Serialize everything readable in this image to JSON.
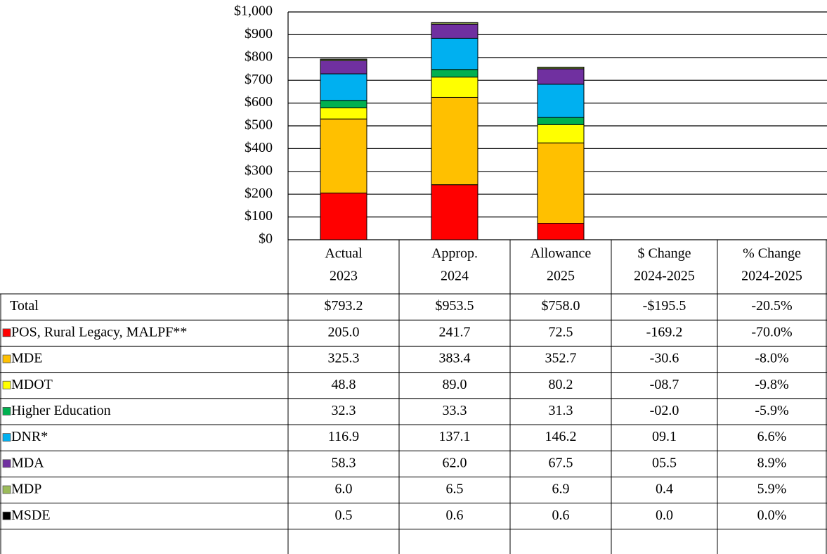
{
  "chart_data": {
    "type": "bar",
    "stacked": true,
    "categories": [
      [
        "Actual",
        "2023"
      ],
      [
        "Approp.",
        "2024"
      ],
      [
        "Allowance",
        "2025"
      ]
    ],
    "extra_columns": [
      [
        "$ Change",
        "2024-2025"
      ],
      [
        "% Change",
        "2024-2025"
      ]
    ],
    "ylim": [
      0,
      1000
    ],
    "yticks": [
      {
        "value": 0,
        "label": "$0"
      },
      {
        "value": 100,
        "label": "$100"
      },
      {
        "value": 200,
        "label": "$200"
      },
      {
        "value": 300,
        "label": "$300"
      },
      {
        "value": 400,
        "label": "$400"
      },
      {
        "value": 500,
        "label": "$500"
      },
      {
        "value": 600,
        "label": "$600"
      },
      {
        "value": 700,
        "label": "$700"
      },
      {
        "value": 800,
        "label": "$800"
      },
      {
        "value": 900,
        "label": "$900"
      },
      {
        "value": 1000,
        "label": "$1,000"
      }
    ],
    "grid": true,
    "total_row": {
      "label": "Total",
      "cells": [
        "$793.2",
        "$953.5",
        "$758.0",
        "-$195.5",
        "-20.5%"
      ]
    },
    "series": [
      {
        "name": "POS, Rural Legacy, MALPF**",
        "color": "#ff0000",
        "values": [
          205.0,
          241.7,
          72.5
        ],
        "value_labels": [
          "205.0",
          "241.7",
          "72.5"
        ],
        "change_labels": [
          "-169.2",
          "-70.0%"
        ]
      },
      {
        "name": "MDE",
        "color": "#ffc000",
        "values": [
          325.3,
          383.4,
          352.7
        ],
        "value_labels": [
          "325.3",
          "383.4",
          "352.7"
        ],
        "change_labels": [
          "-30.6",
          "-8.0%"
        ]
      },
      {
        "name": "MDOT",
        "color": "#ffff00",
        "values": [
          48.8,
          89.0,
          80.2
        ],
        "value_labels": [
          "48.8",
          "89.0",
          "80.2"
        ],
        "change_labels": [
          "-08.7",
          "-9.8%"
        ]
      },
      {
        "name": "Higher Education",
        "color": "#00b050",
        "values": [
          32.3,
          33.3,
          31.3
        ],
        "value_labels": [
          "32.3",
          "33.3",
          "31.3"
        ],
        "change_labels": [
          "-02.0",
          "-5.9%"
        ]
      },
      {
        "name": "DNR*",
        "color": "#00b0f0",
        "values": [
          116.9,
          137.1,
          146.2
        ],
        "value_labels": [
          "116.9",
          "137.1",
          "146.2"
        ],
        "change_labels": [
          "09.1",
          "6.6%"
        ]
      },
      {
        "name": "MDA",
        "color": "#7030a0",
        "values": [
          58.3,
          62.0,
          67.5
        ],
        "value_labels": [
          "58.3",
          "62.0",
          "67.5"
        ],
        "change_labels": [
          "05.5",
          "8.9%"
        ]
      },
      {
        "name": "MDP",
        "color": "#9bbb59",
        "values": [
          6.0,
          6.5,
          6.9
        ],
        "value_labels": [
          "6.0",
          "6.5",
          "6.9"
        ],
        "change_labels": [
          "0.4",
          "5.9%"
        ]
      },
      {
        "name": "MSDE",
        "color": "#000000",
        "values": [
          0.5,
          0.6,
          0.6
        ],
        "value_labels": [
          "0.5",
          "0.6",
          "0.6"
        ],
        "change_labels": [
          "0.0",
          "0.0%"
        ]
      }
    ]
  }
}
